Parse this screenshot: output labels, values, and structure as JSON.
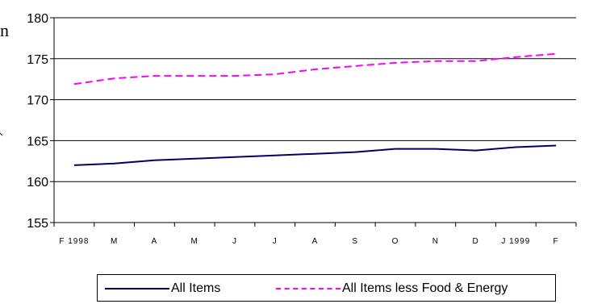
{
  "chart_data": {
    "type": "line",
    "categories": [
      "F 1998",
      "M",
      "A",
      "M",
      "J",
      "J",
      "A",
      "S",
      "O",
      "N",
      "D",
      "J 1999",
      "F"
    ],
    "series": [
      {
        "name": "All Items",
        "color": "#000066",
        "dash": "solid",
        "values": [
          162.0,
          162.2,
          162.6,
          162.8,
          163.0,
          163.2,
          163.4,
          163.6,
          164.0,
          164.0,
          163.8,
          164.2,
          164.4
        ]
      },
      {
        "name": "All Items less Food & Energy",
        "color": "#ff00ff",
        "dash": "dashed",
        "values": [
          171.9,
          172.6,
          172.9,
          172.9,
          172.9,
          173.1,
          173.7,
          174.1,
          174.5,
          174.7,
          174.7,
          175.2,
          175.6
        ]
      }
    ],
    "ylim": [
      155,
      180
    ],
    "yticks": [
      "155",
      "160",
      "165",
      "170",
      "175",
      "180"
    ],
    "grid": "horizontal",
    "legend_position": "bottom",
    "title": "",
    "xlabel": "",
    "ylabel": ""
  },
  "edge_glyph": "n"
}
